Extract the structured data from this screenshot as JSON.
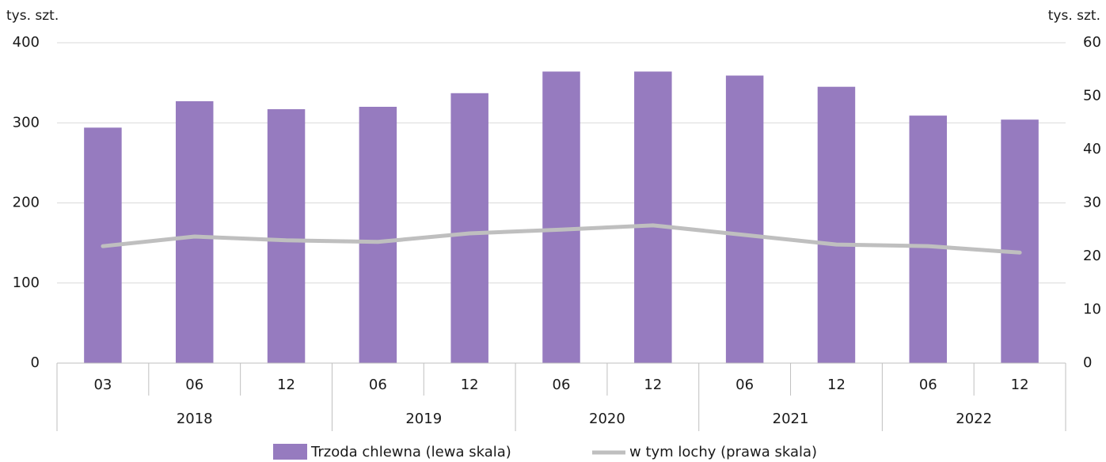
{
  "chart_data": {
    "type": "bar_line",
    "ylabel": "tys. szt.",
    "y2label": "tys. szt.",
    "categories": [
      "03",
      "06",
      "12",
      "06",
      "12",
      "06",
      "12",
      "06",
      "12",
      "06",
      "12"
    ],
    "x_groups": [
      {
        "label": "2018",
        "count": 3
      },
      {
        "label": "2019",
        "count": 2
      },
      {
        "label": "2020",
        "count": 2
      },
      {
        "label": "2021",
        "count": 2
      },
      {
        "label": "2022",
        "count": 2
      }
    ],
    "series": [
      {
        "name": "Trzoda chlewna (lewa skala)",
        "type": "bar",
        "color": "#967bbf",
        "values": [
          294,
          327,
          317,
          320,
          337,
          364,
          364,
          359,
          345,
          309,
          304
        ]
      },
      {
        "name": "w tym lochy (prawa skala)",
        "type": "line",
        "axis": "y2",
        "color": "#bfbfbf",
        "values": [
          21.9,
          23.7,
          23.0,
          22.7,
          24.3,
          25.0,
          25.8,
          24.0,
          22.2,
          21.9,
          20.7
        ]
      }
    ],
    "ylim": [
      0,
      400
    ],
    "yticks": [
      0,
      100,
      200,
      300,
      400
    ],
    "y2lim": [
      0,
      60
    ],
    "y2ticks": [
      0,
      10,
      20,
      30,
      40,
      50,
      60
    ],
    "grid": true,
    "legend": "bottom"
  }
}
